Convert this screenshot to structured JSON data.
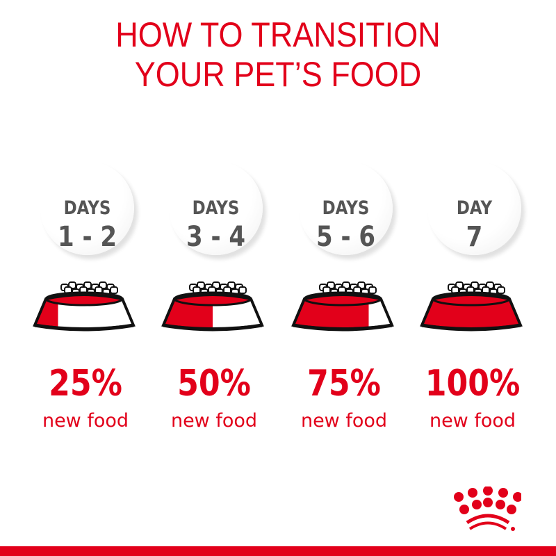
{
  "title": {
    "line1": "HOW TO TRANSITION",
    "line2": "YOUR PET’S FOOD"
  },
  "steps": [
    {
      "days": "DAYS",
      "range": "1 - 2",
      "percent": "25%",
      "label": "new food",
      "new_food_fraction": 0.25
    },
    {
      "days": "DAYS",
      "range": "3 - 4",
      "percent": "50%",
      "label": "new food",
      "new_food_fraction": 0.5
    },
    {
      "days": "DAYS",
      "range": "5 - 6",
      "percent": "75%",
      "label": "new food",
      "new_food_fraction": 0.75
    },
    {
      "days": "DAY",
      "range": "7",
      "percent": "100%",
      "label": "new food",
      "new_food_fraction": 1.0
    }
  ],
  "colors": {
    "brand_red": "#e2001a",
    "text_gray": "#555555"
  },
  "logo": "royal-canin-crown"
}
